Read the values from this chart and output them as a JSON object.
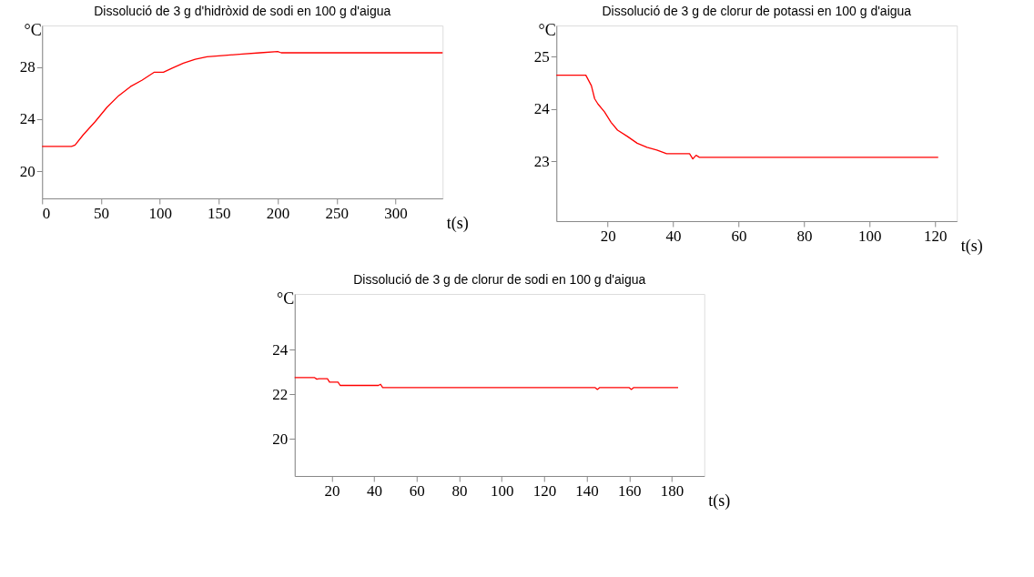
{
  "chart_data": [
    {
      "type": "line",
      "title": "Dissolució de 3  g d'hidròxid de sodi  en 100 g d'aigua",
      "ylabel": "°C",
      "xlabel": "t(s)",
      "xlim": [
        0,
        340
      ],
      "ylim": [
        17.9,
        31.2
      ],
      "xticks": [
        0,
        50,
        100,
        150,
        200,
        250,
        300
      ],
      "yticks": [
        20,
        24,
        28
      ],
      "grid": false,
      "series": [
        {
          "color": "#ff0000",
          "x": [
            0,
            25,
            28,
            35,
            45,
            55,
            65,
            75,
            85,
            95,
            103,
            110,
            120,
            130,
            140,
            155,
            170,
            185,
            200,
            203,
            340
          ],
          "values": [
            21.9,
            21.9,
            22.0,
            22.8,
            23.8,
            24.9,
            25.8,
            26.5,
            27.0,
            27.6,
            27.6,
            27.9,
            28.3,
            28.6,
            28.8,
            28.9,
            29.0,
            29.1,
            29.2,
            29.1,
            29.1
          ]
        }
      ]
    },
    {
      "type": "line",
      "title": "Dissolució de 3 g de clorur de potassi en 100 g d'aigua",
      "ylabel": "°C",
      "xlabel": "t(s)",
      "xlim": [
        4.3,
        126.7
      ],
      "ylim": [
        21.86,
        25.6
      ],
      "xticks": [
        20,
        40,
        60,
        80,
        100,
        120
      ],
      "yticks": [
        23,
        24,
        25
      ],
      "grid": false,
      "series": [
        {
          "color": "#ff0000",
          "x": [
            4.3,
            13.3,
            15,
            16,
            17,
            19,
            21,
            23,
            26,
            29,
            32,
            35,
            38,
            45,
            46,
            47,
            48,
            121
          ],
          "values": [
            24.65,
            24.65,
            24.45,
            24.2,
            24.1,
            23.95,
            23.75,
            23.6,
            23.48,
            23.35,
            23.27,
            23.22,
            23.15,
            23.15,
            23.05,
            23.12,
            23.08,
            23.08
          ]
        }
      ]
    },
    {
      "type": "line",
      "title": "Dissolució de 3  g  de clorur de sodi  en 100 g d'aigua",
      "ylabel": "°C",
      "xlabel": "t(s)",
      "xlim": [
        2.6,
        195.3
      ],
      "ylim": [
        18.34,
        26.5
      ],
      "xticks": [
        20,
        40,
        60,
        80,
        100,
        120,
        140,
        160,
        180
      ],
      "yticks": [
        20,
        22,
        24
      ],
      "grid": false,
      "series": [
        {
          "color": "#ff0000",
          "x": [
            2.6,
            12,
            13,
            14,
            18,
            19,
            23,
            24,
            42,
            43,
            44,
            144,
            145,
            146,
            160,
            161,
            162,
            183
          ],
          "values": [
            22.75,
            22.75,
            22.68,
            22.7,
            22.7,
            22.55,
            22.55,
            22.4,
            22.4,
            22.45,
            22.3,
            22.3,
            22.22,
            22.3,
            22.3,
            22.22,
            22.3,
            22.3
          ]
        }
      ]
    }
  ]
}
